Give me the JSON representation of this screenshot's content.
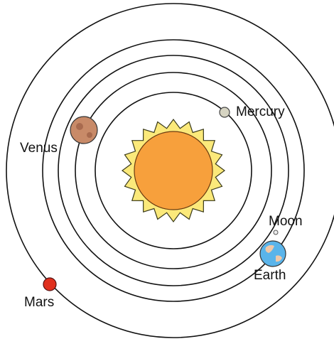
{
  "planets": [
    {
      "label": "Mercury"
    },
    {
      "label": "Venus"
    },
    {
      "label": "Earth"
    },
    {
      "label": "Moon"
    },
    {
      "label": "Mars"
    }
  ]
}
